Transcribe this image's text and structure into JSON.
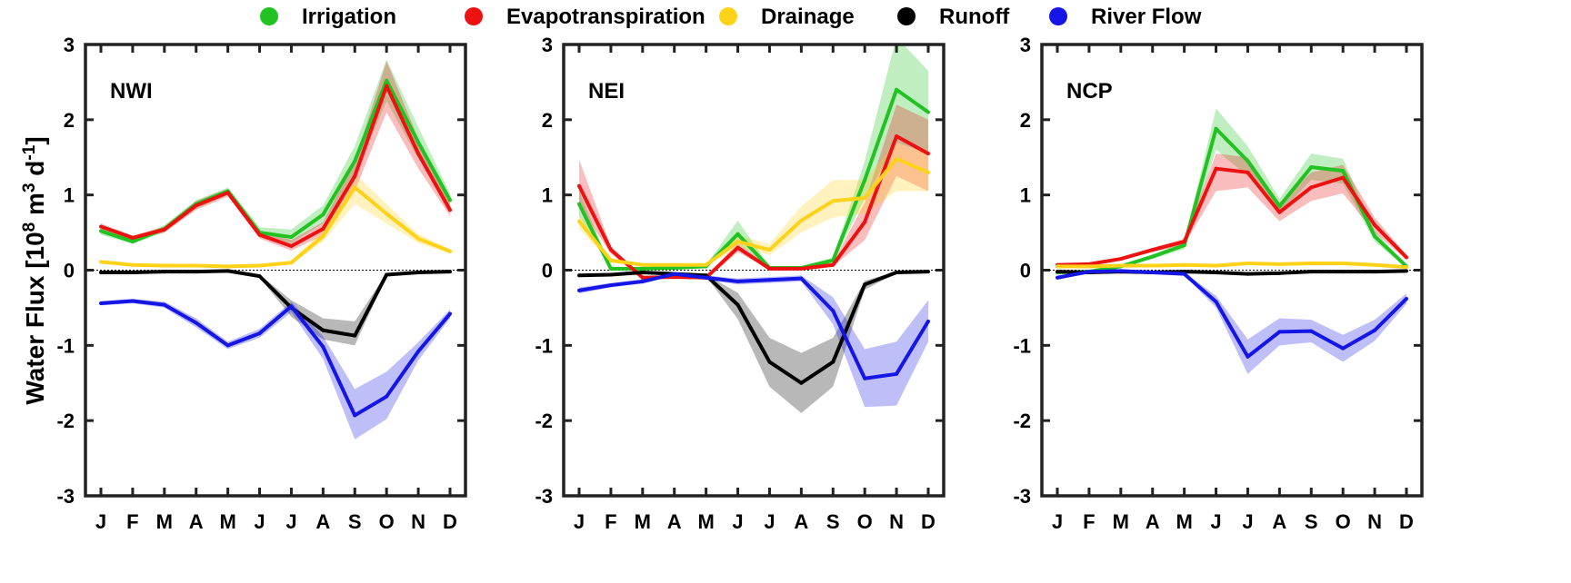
{
  "chart_data": {
    "type": "line",
    "ylabel": {
      "main": "Water Flux [10",
      "exp1": "8",
      "mid1": " m",
      "exp2": "3",
      "mid2": " d",
      "exp3": "-1",
      "end": "]"
    },
    "ylim": [
      -3,
      3
    ],
    "yticks": [
      "-3",
      "-2",
      "-1",
      "0",
      "1",
      "2",
      "3"
    ],
    "x_categories": [
      "J",
      "F",
      "M",
      "A",
      "M",
      "J",
      "J",
      "A",
      "S",
      "O",
      "N",
      "D"
    ],
    "legend_position": "top",
    "legend": [
      {
        "name": "Irrigation",
        "color": "#22c222"
      },
      {
        "name": "Evapotranspiration",
        "color": "#ee1111"
      },
      {
        "name": "Drainage",
        "color": "#ffd21a"
      },
      {
        "name": "Runoff",
        "color": "#000000"
      },
      {
        "name": "River Flow",
        "color": "#1515e6"
      }
    ],
    "panels": [
      {
        "label": "NWI",
        "series": [
          {
            "name": "Irrigation",
            "color": "#22c222",
            "values": [
              0.52,
              0.38,
              0.55,
              0.88,
              1.05,
              0.5,
              0.44,
              0.74,
              1.45,
              2.52,
              1.7,
              0.93
            ],
            "lower": [
              0.47,
              0.35,
              0.5,
              0.82,
              1.0,
              0.44,
              0.36,
              0.62,
              1.25,
              2.25,
              1.48,
              0.85
            ],
            "upper": [
              0.58,
              0.42,
              0.6,
              0.93,
              1.1,
              0.57,
              0.54,
              0.86,
              1.65,
              2.8,
              1.9,
              1.02
            ]
          },
          {
            "name": "Evapotranspiration",
            "color": "#ee1111",
            "values": [
              0.58,
              0.43,
              0.54,
              0.86,
              1.03,
              0.47,
              0.32,
              0.55,
              1.25,
              2.45,
              1.55,
              0.8
            ],
            "lower": [
              0.54,
              0.4,
              0.5,
              0.8,
              0.98,
              0.42,
              0.26,
              0.46,
              1.05,
              2.1,
              1.35,
              0.72
            ],
            "upper": [
              0.62,
              0.46,
              0.58,
              0.92,
              1.08,
              0.52,
              0.4,
              0.64,
              1.45,
              2.78,
              1.75,
              0.88
            ]
          },
          {
            "name": "Drainage",
            "color": "#ffd21a",
            "values": [
              0.11,
              0.07,
              0.06,
              0.06,
              0.05,
              0.06,
              0.1,
              0.45,
              1.1,
              0.75,
              0.42,
              0.25
            ],
            "lower": [
              0.09,
              0.06,
              0.05,
              0.05,
              0.04,
              0.05,
              0.08,
              0.38,
              0.88,
              0.62,
              0.36,
              0.22
            ],
            "upper": [
              0.13,
              0.08,
              0.07,
              0.07,
              0.06,
              0.07,
              0.12,
              0.54,
              1.28,
              0.88,
              0.48,
              0.28
            ]
          },
          {
            "name": "Runoff",
            "color": "#000000",
            "values": [
              -0.03,
              -0.03,
              -0.02,
              -0.02,
              -0.01,
              -0.08,
              -0.5,
              -0.8,
              -0.87,
              -0.06,
              -0.03,
              -0.02
            ],
            "lower": [
              -0.04,
              -0.04,
              -0.03,
              -0.03,
              -0.02,
              -0.1,
              -0.62,
              -0.92,
              -1.0,
              -0.08,
              -0.04,
              -0.03
            ],
            "upper": [
              -0.02,
              -0.02,
              -0.01,
              -0.01,
              0.0,
              -0.06,
              -0.4,
              -0.64,
              -0.68,
              -0.04,
              -0.02,
              -0.01
            ]
          },
          {
            "name": "River Flow",
            "color": "#1515e6",
            "values": [
              -0.44,
              -0.41,
              -0.46,
              -0.7,
              -1.0,
              -0.84,
              -0.48,
              -1.02,
              -1.93,
              -1.68,
              -1.08,
              -0.58
            ],
            "lower": [
              -0.47,
              -0.44,
              -0.5,
              -0.76,
              -1.05,
              -0.9,
              -0.56,
              -1.18,
              -2.25,
              -1.98,
              -1.2,
              -0.64
            ],
            "upper": [
              -0.41,
              -0.38,
              -0.42,
              -0.64,
              -0.95,
              -0.78,
              -0.42,
              -0.88,
              -1.58,
              -1.35,
              -0.96,
              -0.52
            ]
          }
        ]
      },
      {
        "label": "NEI",
        "series": [
          {
            "name": "Irrigation",
            "color": "#22c222",
            "values": [
              0.88,
              0.02,
              0.02,
              0.03,
              0.05,
              0.48,
              0.03,
              0.03,
              0.13,
              1.2,
              2.4,
              2.1
            ],
            "lower": [
              0.72,
              0.01,
              0.01,
              0.02,
              0.04,
              0.36,
              0.02,
              0.02,
              0.1,
              0.95,
              1.7,
              1.55
            ],
            "upper": [
              1.05,
              0.04,
              0.03,
              0.05,
              0.07,
              0.66,
              0.05,
              0.05,
              0.17,
              1.45,
              3.1,
              2.65
            ]
          },
          {
            "name": "Evapotranspiration",
            "color": "#ee1111",
            "values": [
              1.12,
              0.27,
              -0.1,
              -0.09,
              -0.1,
              0.3,
              0.02,
              0.02,
              0.07,
              0.64,
              1.78,
              1.55
            ],
            "lower": [
              0.85,
              0.22,
              -0.12,
              -0.11,
              -0.12,
              0.24,
              0.01,
              0.01,
              0.05,
              0.4,
              1.25,
              1.05
            ],
            "upper": [
              1.47,
              0.32,
              -0.08,
              -0.07,
              -0.08,
              0.36,
              0.04,
              0.04,
              0.1,
              0.9,
              2.2,
              2.0
            ]
          },
          {
            "name": "Drainage",
            "color": "#ffd21a",
            "values": [
              0.65,
              0.13,
              0.07,
              0.07,
              0.07,
              0.38,
              0.27,
              0.66,
              0.92,
              0.96,
              1.48,
              1.3
            ],
            "lower": [
              0.55,
              0.1,
              0.06,
              0.06,
              0.06,
              0.3,
              0.2,
              0.5,
              0.7,
              0.75,
              1.05,
              1.05
            ],
            "upper": [
              0.75,
              0.16,
              0.08,
              0.08,
              0.08,
              0.46,
              0.35,
              0.85,
              1.2,
              1.2,
              1.7,
              1.55
            ]
          },
          {
            "name": "Runoff",
            "color": "#000000",
            "values": [
              -0.07,
              -0.06,
              -0.03,
              -0.05,
              -0.07,
              -0.46,
              -1.22,
              -1.5,
              -1.22,
              -0.19,
              -0.03,
              -0.02
            ],
            "lower": [
              -0.08,
              -0.07,
              -0.04,
              -0.06,
              -0.08,
              -0.65,
              -1.55,
              -1.9,
              -1.55,
              -0.26,
              -0.04,
              -0.03
            ],
            "upper": [
              -0.06,
              -0.05,
              -0.02,
              -0.04,
              -0.06,
              -0.3,
              -0.9,
              -1.1,
              -0.9,
              -0.14,
              -0.02,
              -0.01
            ]
          },
          {
            "name": "River Flow",
            "color": "#1515e6",
            "values": [
              -0.27,
              -0.2,
              -0.15,
              -0.05,
              -0.1,
              -0.15,
              -0.13,
              -0.11,
              -0.54,
              -1.44,
              -1.38,
              -0.68
            ],
            "lower": [
              -0.31,
              -0.23,
              -0.18,
              -0.07,
              -0.13,
              -0.19,
              -0.17,
              -0.15,
              -0.72,
              -1.82,
              -1.8,
              -0.95
            ],
            "upper": [
              -0.23,
              -0.17,
              -0.12,
              -0.03,
              -0.07,
              -0.11,
              -0.09,
              -0.07,
              -0.36,
              -1.05,
              -0.95,
              -0.4
            ]
          }
        ]
      },
      {
        "label": "NCP",
        "series": [
          {
            "name": "Irrigation",
            "color": "#22c222",
            "values": [
              -0.03,
              -0.02,
              0.05,
              0.18,
              0.33,
              1.88,
              1.45,
              0.85,
              1.37,
              1.32,
              0.45,
              0.05
            ],
            "lower": [
              -0.04,
              -0.03,
              0.04,
              0.15,
              0.28,
              1.6,
              1.25,
              0.75,
              1.2,
              1.15,
              0.38,
              0.03
            ],
            "upper": [
              -0.02,
              -0.01,
              0.06,
              0.21,
              0.38,
              2.15,
              1.65,
              0.95,
              1.55,
              1.48,
              0.52,
              0.07
            ]
          },
          {
            "name": "Evapotranspiration",
            "color": "#ee1111",
            "values": [
              0.07,
              0.08,
              0.15,
              0.27,
              0.38,
              1.35,
              1.3,
              0.77,
              1.1,
              1.23,
              0.6,
              0.17
            ],
            "lower": [
              0.06,
              0.07,
              0.13,
              0.24,
              0.34,
              1.05,
              1.1,
              0.65,
              0.92,
              1.02,
              0.5,
              0.14
            ],
            "upper": [
              0.08,
              0.09,
              0.17,
              0.3,
              0.42,
              1.55,
              1.5,
              0.9,
              1.3,
              1.4,
              0.7,
              0.2
            ]
          },
          {
            "name": "Drainage",
            "color": "#ffd21a",
            "values": [
              0.05,
              0.05,
              0.06,
              0.06,
              0.07,
              0.06,
              0.09,
              0.08,
              0.09,
              0.09,
              0.07,
              0.04
            ],
            "lower": [
              0.04,
              0.04,
              0.05,
              0.05,
              0.06,
              0.05,
              0.08,
              0.07,
              0.08,
              0.08,
              0.06,
              0.03
            ],
            "upper": [
              0.06,
              0.06,
              0.07,
              0.07,
              0.08,
              0.07,
              0.1,
              0.09,
              0.1,
              0.1,
              0.08,
              0.05
            ]
          },
          {
            "name": "Runoff",
            "color": "#000000",
            "values": [
              -0.02,
              -0.03,
              -0.02,
              -0.03,
              -0.02,
              -0.03,
              -0.05,
              -0.04,
              -0.02,
              -0.02,
              -0.02,
              -0.01
            ],
            "lower": [
              -0.03,
              -0.04,
              -0.03,
              -0.04,
              -0.03,
              -0.04,
              -0.06,
              -0.05,
              -0.03,
              -0.03,
              -0.03,
              -0.02
            ],
            "upper": [
              -0.01,
              -0.02,
              -0.01,
              -0.02,
              -0.01,
              -0.02,
              -0.04,
              -0.03,
              -0.01,
              -0.01,
              -0.01,
              0.0
            ]
          },
          {
            "name": "River Flow",
            "color": "#1515e6",
            "values": [
              -0.1,
              -0.02,
              -0.01,
              -0.03,
              -0.05,
              -0.42,
              -1.15,
              -0.82,
              -0.81,
              -1.04,
              -0.8,
              -0.38
            ],
            "lower": [
              -0.13,
              -0.03,
              -0.02,
              -0.04,
              -0.07,
              -0.5,
              -1.38,
              -1.0,
              -0.96,
              -1.22,
              -0.94,
              -0.45
            ],
            "upper": [
              -0.07,
              -0.01,
              0.0,
              -0.02,
              -0.03,
              -0.34,
              -0.92,
              -0.64,
              -0.66,
              -0.86,
              -0.66,
              -0.31
            ]
          }
        ]
      }
    ]
  }
}
